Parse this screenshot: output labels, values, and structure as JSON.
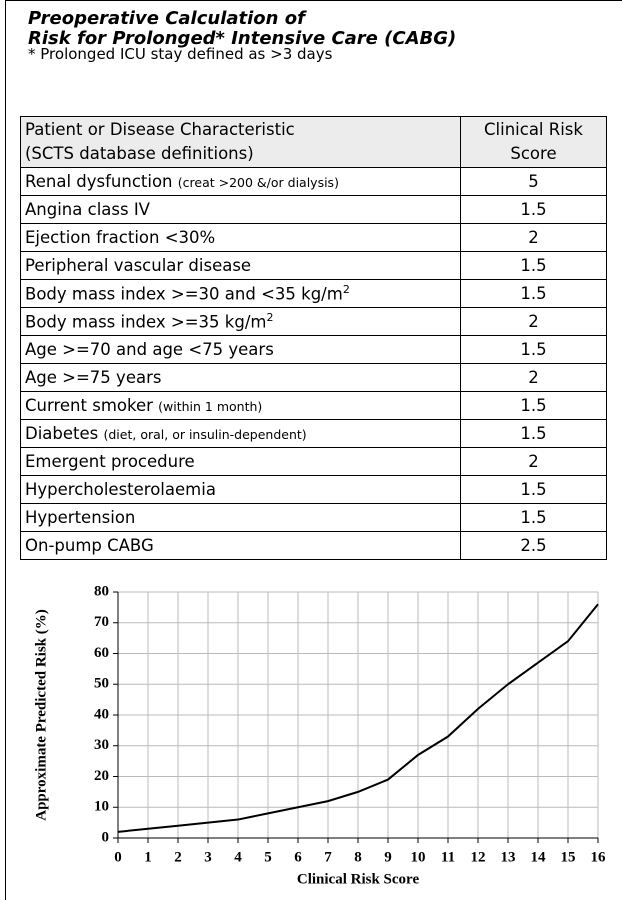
{
  "header": {
    "title_lines": [
      "Preoperative Calculation of",
      "Risk for Prolonged* Intensive Care (CABG)"
    ],
    "note": "* Prolonged ICU stay defined as >3 days"
  },
  "table": {
    "columns": [
      [
        "Patient or Disease Characteristic",
        "(SCTS database definitions)"
      ],
      [
        "Clinical Risk",
        "Score"
      ]
    ],
    "rows": [
      {
        "text": "Renal dysfunction",
        "note": "(creat >200 &/or dialysis)",
        "score": 5
      },
      {
        "text": "Angina class IV",
        "score": 1.5
      },
      {
        "text": "Ejection fraction <30%",
        "score": 2
      },
      {
        "text": "Peripheral vascular disease",
        "score": 1.5
      },
      {
        "text": "Body mass index >=30 and <35 kg/m",
        "sup": "2",
        "score": 1.5
      },
      {
        "text": "Body mass index >=35 kg/m",
        "sup": "2",
        "score": 2
      },
      {
        "text": "Age >=70 and age <75 years",
        "score": 1.5
      },
      {
        "text": "Age >=75 years",
        "score": 2
      },
      {
        "text": "Current smoker",
        "note": "(within 1 month)",
        "score": 1.5
      },
      {
        "text": "Diabetes",
        "note": "(diet, oral, or insulin-dependent)",
        "score": 1.5
      },
      {
        "text": "Emergent procedure",
        "score": 2
      },
      {
        "text": "Hypercholesterolaemia",
        "score": 1.5
      },
      {
        "text": "Hypertension",
        "score": 1.5
      },
      {
        "text": "On-pump CABG",
        "score": 2.5
      }
    ]
  },
  "chart_data": {
    "type": "line",
    "x_label": "Clinical Risk Score",
    "y_label": "Approximate Predicted Risk (%)",
    "x": [
      0,
      1,
      2,
      3,
      4,
      5,
      6,
      7,
      8,
      9,
      10,
      11,
      12,
      13,
      14,
      15,
      16
    ],
    "series": [
      {
        "name": null,
        "color": "#000000",
        "values": [
          2,
          3,
          4,
          5,
          6,
          8,
          10,
          12,
          15,
          19,
          27,
          33,
          42,
          50,
          57,
          64,
          76
        ]
      }
    ],
    "xlim": [
      0,
      16
    ],
    "xticks": [
      0,
      1,
      2,
      3,
      4,
      5,
      6,
      7,
      8,
      9,
      10,
      11,
      12,
      13,
      14,
      15,
      16
    ],
    "ylim": [
      0,
      80
    ],
    "yticks": [
      0,
      10,
      20,
      30,
      40,
      50,
      60,
      70,
      80
    ],
    "grid": true
  }
}
